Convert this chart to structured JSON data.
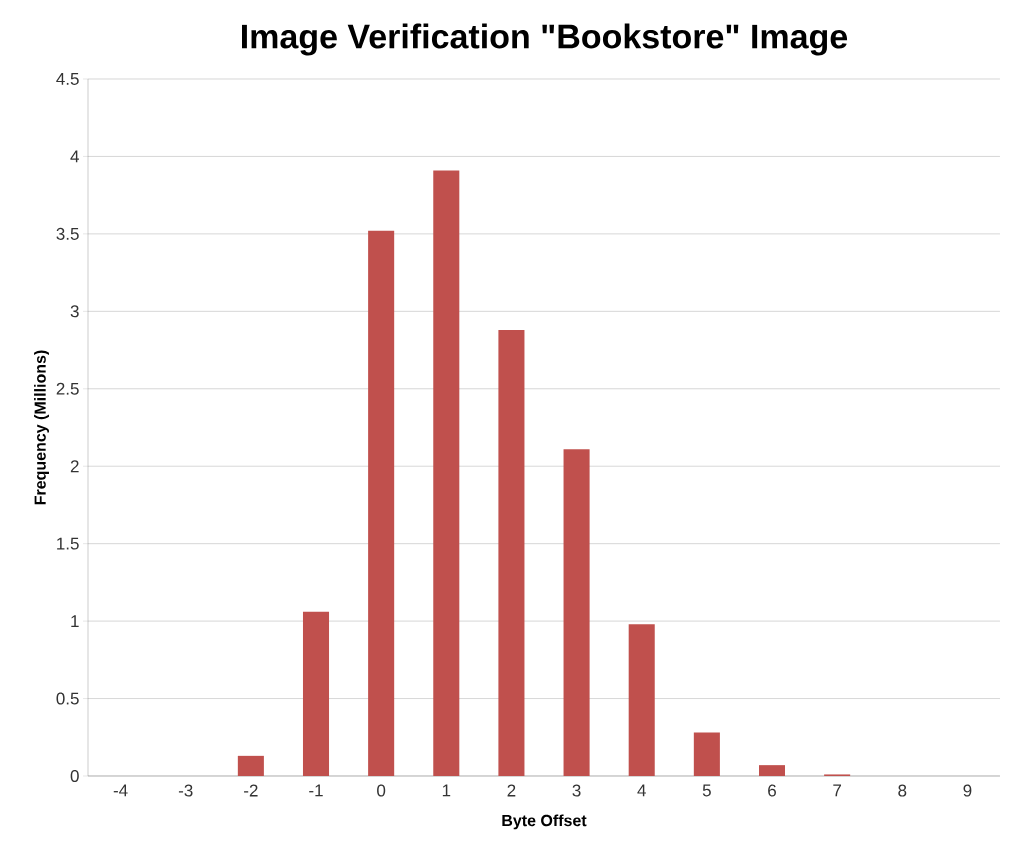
{
  "chart_data": {
    "type": "bar",
    "title": "Image Verification \"Bookstore\" Image",
    "xlabel": "Byte Offset",
    "ylabel": "Frequency (Millions)",
    "categories": [
      "-4",
      "-3",
      "-2",
      "-1",
      "0",
      "1",
      "2",
      "3",
      "4",
      "5",
      "6",
      "7",
      "8",
      "9"
    ],
    "values": [
      0,
      0,
      0.13,
      1.06,
      3.52,
      3.91,
      2.88,
      2.11,
      0.98,
      0.28,
      0.07,
      0.01,
      0,
      0
    ],
    "color": "#c0504d",
    "ylim": [
      0,
      4.5
    ],
    "yticks": [
      0,
      0.5,
      1,
      1.5,
      2,
      2.5,
      3,
      3.5,
      4,
      4.5
    ],
    "grid": "y"
  }
}
